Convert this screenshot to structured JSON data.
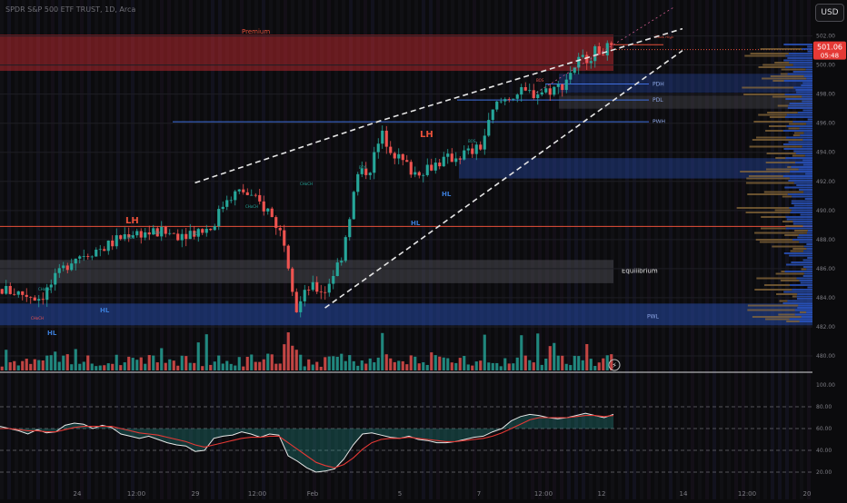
{
  "header": {
    "title": "SPDR S&P 500 ETF TRUST, 1D, Arca",
    "currency_label": "USD"
  },
  "price_tag": {
    "price": "501.06",
    "countdown": "05:48"
  },
  "zones": {
    "premium_label": "Premium",
    "weak_high_label": "Weak High",
    "equilibrium_label": "Equilibrium",
    "pdh_label": "PDH",
    "pdl_label": "PDL",
    "pwh_label": "PWH",
    "pwl_label": "PWL"
  },
  "structure_labels": [
    {
      "text": "LH",
      "color": "#e8503a"
    },
    {
      "text": "LH",
      "color": "#e8503a"
    },
    {
      "text": "HL",
      "color": "#3a7bd5"
    },
    {
      "text": "HL",
      "color": "#3a7bd5"
    },
    {
      "text": "HL",
      "color": "#3a7bd5"
    },
    {
      "text": "HL",
      "color": "#3a7bd5"
    },
    {
      "text": "CHoCH",
      "color": "#26a69a"
    },
    {
      "text": "CHoCH",
      "color": "#26a69a"
    },
    {
      "text": "CHoCH",
      "color": "#26a69a"
    },
    {
      "text": "CHoCH",
      "color": "#ef5350"
    },
    {
      "text": "BOS",
      "color": "#26a69a"
    },
    {
      "text": "BOS",
      "color": "#26a69a"
    },
    {
      "text": "BOS",
      "color": "#26a69a"
    },
    {
      "text": "BOS",
      "color": "#26a69a"
    },
    {
      "text": "BOS",
      "color": "#26a69a"
    },
    {
      "text": "BOS",
      "color": "#ef5350"
    }
  ],
  "colors": {
    "bull": "#26a69a",
    "bear": "#ef5350",
    "background": "#0b0b0d",
    "premium_zone": "#b3282d",
    "discount_zone": "#2a56c6",
    "equilibrium_zone": "#55555c",
    "wedge_line": "#e6e6e6",
    "oscillator_line": "#e6e6e6",
    "oscillator_signal": "#e53935",
    "key_level": "#3f6fe0"
  },
  "chart_data": {
    "type": "candlestick",
    "title": "SPDR S&P 500 ETF TRUST, 1D, Arca",
    "price_axis": {
      "ticks": [
        "502.00",
        "500.00",
        "498.00",
        "496.00",
        "494.00",
        "492.00",
        "490.00",
        "488.00",
        "486.00",
        "484.00",
        "482.00",
        "480.00"
      ],
      "range": [
        479.0,
        502.6
      ]
    },
    "oscillator_axis": {
      "ticks": [
        "100.00",
        "80.00",
        "60.00",
        "40.00",
        "20.00"
      ],
      "range": [
        10,
        110
      ],
      "dashed_levels": [
        80,
        60,
        40,
        20
      ]
    },
    "time_axis": {
      "ticks": [
        "24",
        "12:00",
        "29",
        "12:00",
        "Feb",
        "5",
        "7",
        "12:00",
        "12",
        "14",
        "12:00",
        "20"
      ]
    },
    "levels": {
      "weak_high": 501.4,
      "pdh": 498.7,
      "pdl": 497.6,
      "pwh": 496.1,
      "pwl": 482.7
    },
    "wedge": {
      "upper": [
        [
          0.24,
          491.9
        ],
        [
          0.47,
          496.2
        ],
        [
          0.84,
          502.5
        ]
      ],
      "lower": [
        [
          0.4,
          483.3
        ],
        [
          0.5,
          487.3
        ],
        [
          0.84,
          501.0
        ]
      ]
    },
    "last_price": 501.06,
    "oscillator": {
      "main": [
        62,
        60,
        58,
        55,
        59,
        56,
        57,
        63,
        65,
        64,
        60,
        63,
        61,
        55,
        53,
        51,
        53,
        50,
        47,
        45,
        44,
        39,
        40,
        51,
        53,
        54,
        57,
        55,
        52,
        55,
        54,
        35,
        30,
        24,
        20,
        21,
        23,
        32,
        45,
        55,
        56,
        54,
        52,
        51,
        53,
        50,
        49,
        47,
        47,
        48,
        50,
        52,
        53,
        57,
        60,
        67,
        71,
        73,
        72,
        70,
        69,
        70,
        72,
        74,
        72,
        70,
        73
      ],
      "signal": [
        60,
        60,
        59,
        58,
        58,
        57,
        57,
        59,
        61,
        62,
        62,
        62,
        62,
        60,
        58,
        56,
        55,
        54,
        52,
        50,
        48,
        45,
        43,
        45,
        47,
        49,
        51,
        52,
        52,
        53,
        53,
        47,
        41,
        35,
        29,
        26,
        24,
        27,
        33,
        41,
        47,
        50,
        51,
        51,
        52,
        51,
        50,
        49,
        48,
        48,
        49,
        50,
        51,
        53,
        56,
        60,
        64,
        68,
        70,
        70,
        70,
        70,
        71,
        72,
        72,
        71,
        72
      ]
    }
  }
}
